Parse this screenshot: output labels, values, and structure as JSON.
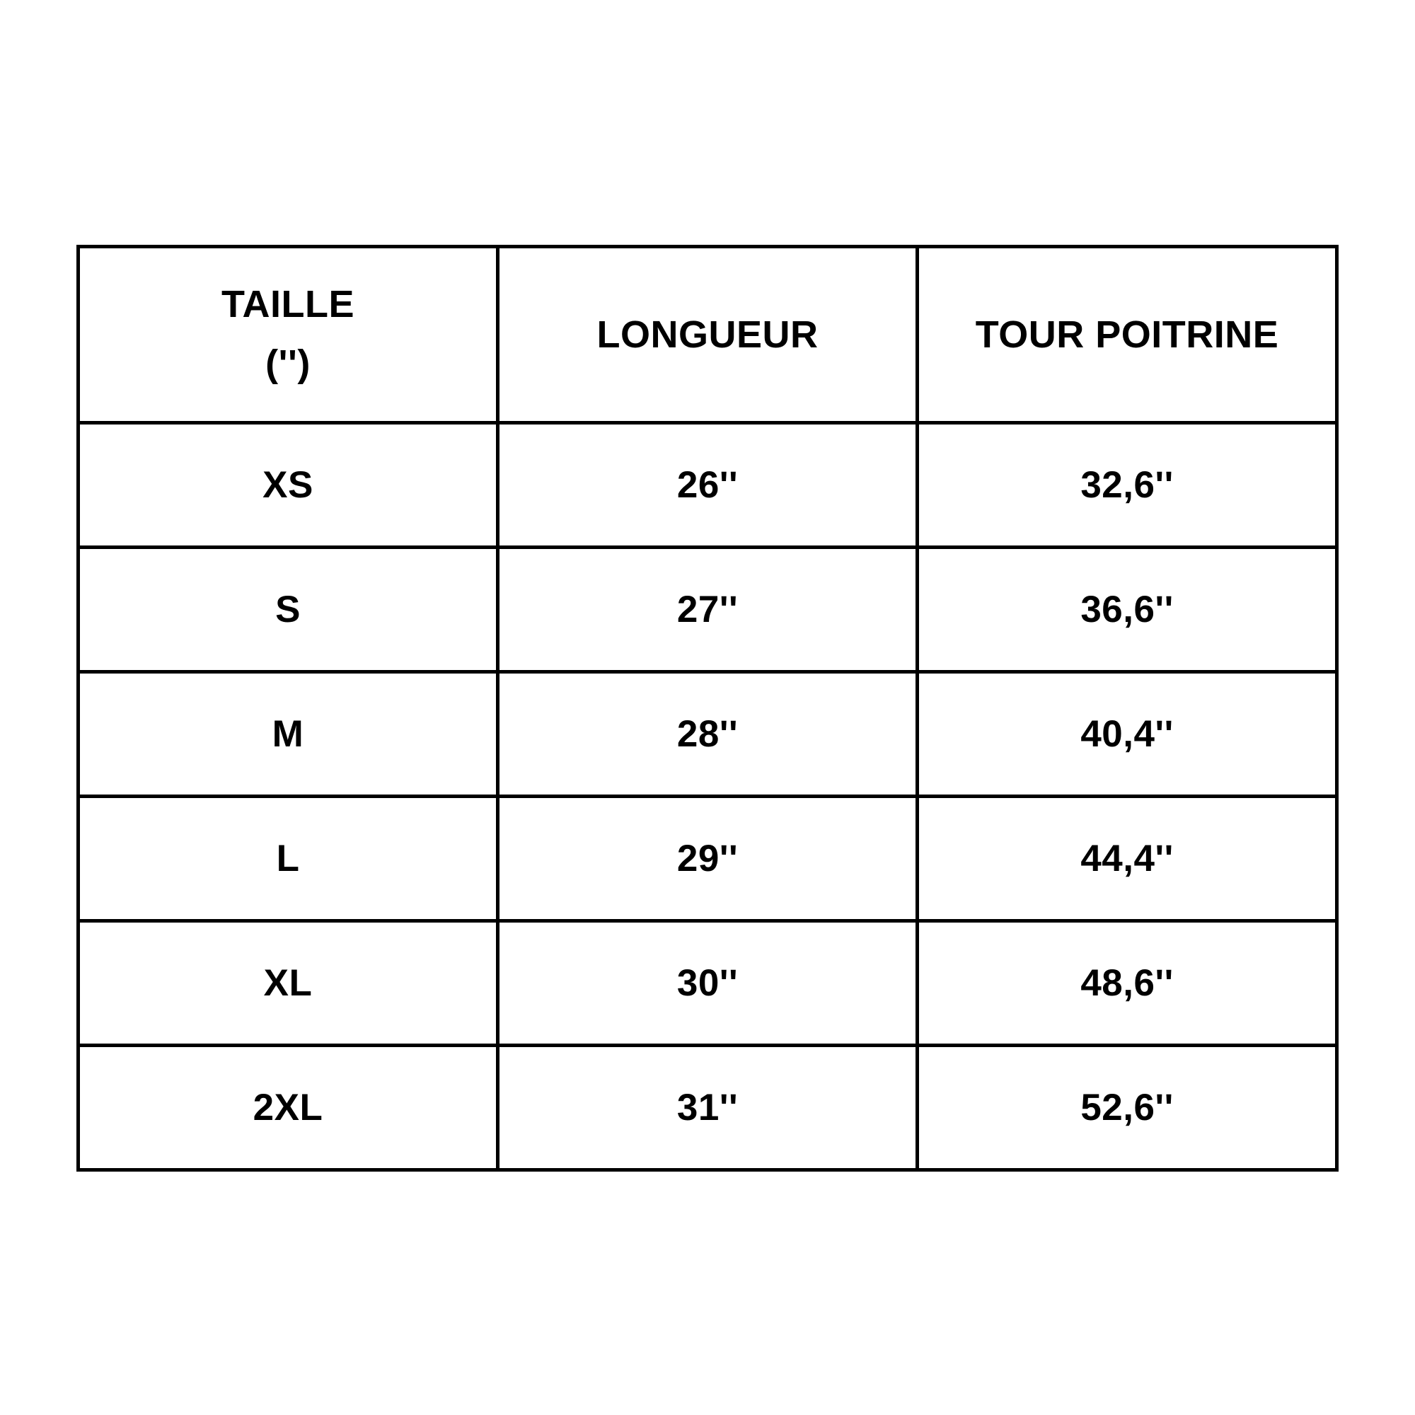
{
  "page": {
    "background_color": "#ffffff",
    "text_color": "#000000",
    "border_color": "#000000"
  },
  "size_chart": {
    "columns": [
      "TAILLE\n('')",
      "LONGUEUR",
      "TOUR POITRINE"
    ],
    "rows": [
      {
        "size": "XS",
        "longueur": "26''",
        "tour_poitrine": "32,6''"
      },
      {
        "size": "S",
        "longueur": "27''",
        "tour_poitrine": "36,6''"
      },
      {
        "size": "M",
        "longueur": "28''",
        "tour_poitrine": "40,4''"
      },
      {
        "size": "L",
        "longueur": "29''",
        "tour_poitrine": "44,4''"
      },
      {
        "size": "XL",
        "longueur": "30''",
        "tour_poitrine": "48,6''"
      },
      {
        "size": "2XL",
        "longueur": "31''",
        "tour_poitrine": "52,6''"
      }
    ]
  }
}
